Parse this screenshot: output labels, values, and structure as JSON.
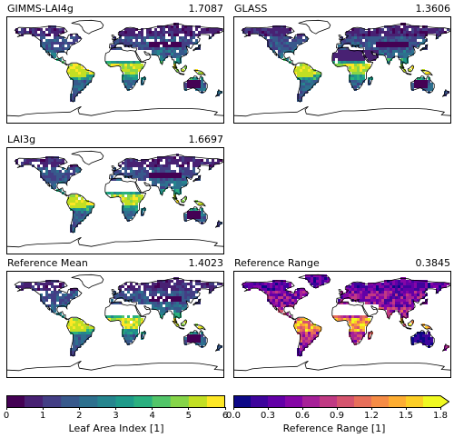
{
  "panels": [
    {
      "title": "GIMMS-LAI4g",
      "value": "1.7087",
      "palette": "viridis",
      "variant": "a"
    },
    {
      "title": "GLASS",
      "value": "1.3606",
      "palette": "viridis",
      "variant": "b"
    },
    {
      "title": "LAI3g",
      "value": "1.6697",
      "palette": "viridis",
      "variant": "c"
    },
    {
      "title": "Reference Mean",
      "value": "1.4023",
      "palette": "viridis",
      "variant": "d"
    },
    {
      "title": "Reference Range",
      "value": "0.3845",
      "palette": "plasma",
      "variant": "e"
    }
  ],
  "colorbars": {
    "lai": {
      "label": "Leaf Area Index [1]",
      "ticks": [
        "0",
        "1",
        "2",
        "3",
        "4",
        "5",
        "6"
      ],
      "range": [
        0,
        6
      ],
      "colors": [
        "#440154",
        "#482173",
        "#433e85",
        "#38598c",
        "#2d708e",
        "#25858e",
        "#1e9b8a",
        "#2ab07f",
        "#52c569",
        "#86d549",
        "#c2df23",
        "#fde725"
      ]
    },
    "range": {
      "label": "Reference Range [1]",
      "ticks": [
        "0.0",
        "0.3",
        "0.6",
        "0.9",
        "1.2",
        "1.5",
        "1.8"
      ],
      "range": [
        0,
        1.8
      ],
      "extend": "max",
      "colors": [
        "#0d0887",
        "#3e049c",
        "#6300a7",
        "#8606a6",
        "#a62098",
        "#c03a83",
        "#d5546e",
        "#e76f5a",
        "#f58c46",
        "#fdad32",
        "#fcce25",
        "#f0f921"
      ]
    }
  },
  "chart_data": [
    {
      "type": "heatmap",
      "title": "GIMMS-LAI4g",
      "annotation": "1.7087",
      "colorbar": "Leaf Area Index [1]",
      "vmin": 0,
      "vmax": 6
    },
    {
      "type": "heatmap",
      "title": "GLASS",
      "annotation": "1.3606",
      "colorbar": "Leaf Area Index [1]",
      "vmin": 0,
      "vmax": 6
    },
    {
      "type": "heatmap",
      "title": "LAI3g",
      "annotation": "1.6697",
      "colorbar": "Leaf Area Index [1]",
      "vmin": 0,
      "vmax": 6
    },
    {
      "type": "heatmap",
      "title": "Reference Mean",
      "annotation": "1.4023",
      "colorbar": "Leaf Area Index [1]",
      "vmin": 0,
      "vmax": 6
    },
    {
      "type": "heatmap",
      "title": "Reference Range",
      "annotation": "0.3845",
      "colorbar": "Reference Range [1]",
      "vmin": 0.0,
      "vmax": 1.8
    }
  ]
}
